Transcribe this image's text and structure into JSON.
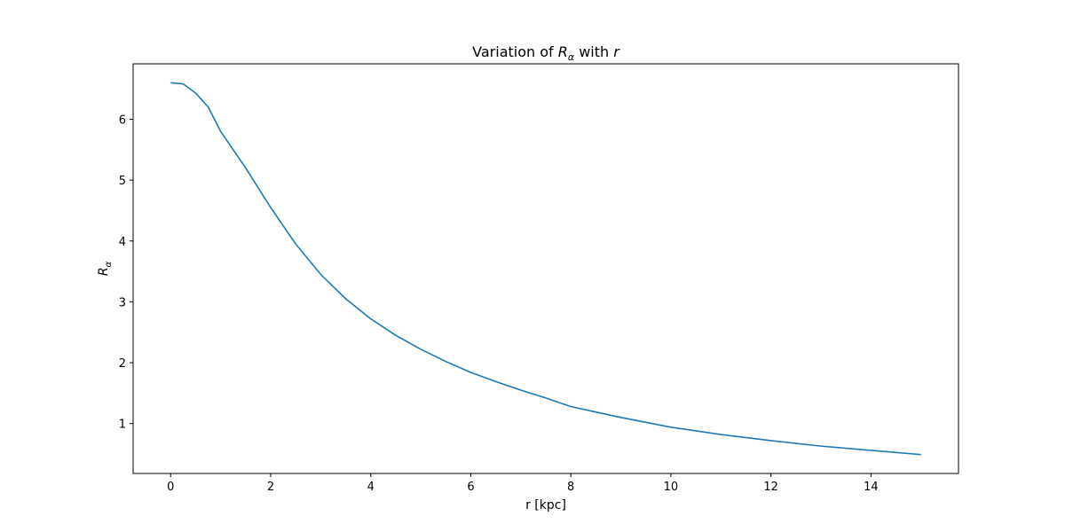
{
  "chart_data": {
    "type": "line",
    "title": [
      "Variation of ",
      "R",
      "α",
      " with ",
      "r"
    ],
    "xlabel": "r [kpc]",
    "ylabel": [
      "R",
      "α"
    ],
    "x": [
      0,
      0.25,
      0.5,
      0.75,
      1,
      1.5,
      2,
      2.5,
      3,
      3.5,
      4,
      4.5,
      5,
      5.5,
      6,
      6.5,
      7,
      7.5,
      8,
      8.5,
      9,
      9.5,
      10,
      11,
      12,
      13,
      14,
      15
    ],
    "series": [
      {
        "color": "#1f77b4",
        "values": [
          6.6,
          6.58,
          6.43,
          6.2,
          5.8,
          5.2,
          4.55,
          3.95,
          3.45,
          3.05,
          2.72,
          2.45,
          2.22,
          2.02,
          1.84,
          1.69,
          1.55,
          1.42,
          1.28,
          1.19,
          1.1,
          1.02,
          0.94,
          0.82,
          0.72,
          0.63,
          0.56,
          0.49
        ]
      }
    ],
    "xlim": [
      -0.75,
      15.75
    ],
    "ylim": [
      0.18,
      6.91
    ],
    "xticks": [
      0,
      2,
      4,
      6,
      8,
      10,
      12,
      14
    ],
    "yticks": [
      1,
      2,
      3,
      4,
      5,
      6
    ],
    "grid": false
  }
}
